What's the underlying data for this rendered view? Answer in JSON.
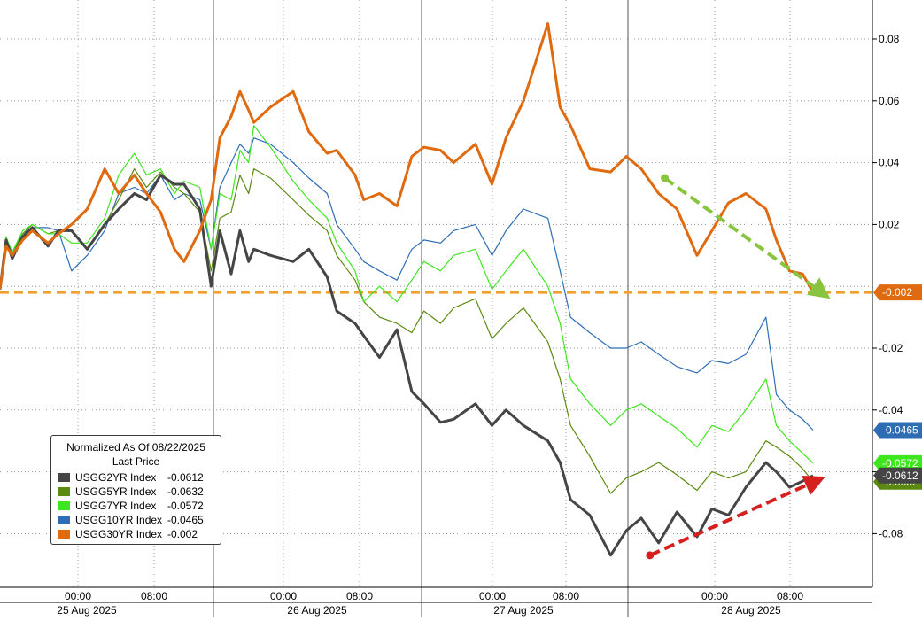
{
  "chart_data": {
    "type": "line",
    "x_ticks": [
      "00:00",
      "08:00",
      "00:00",
      "08:00",
      "00:00",
      "08:00",
      "00:00",
      "08:00"
    ],
    "date_labels": [
      "25 Aug 2025",
      "26 Aug 2025",
      "27 Aug 2025",
      "28 Aug 2025"
    ],
    "y_ticks": [
      "0.08",
      "0.06",
      "0.04",
      "0.02",
      "-0.02",
      "-0.04",
      "-0.06",
      "-0.08"
    ],
    "ylim": [
      -0.095,
      0.095
    ],
    "grid": true,
    "y_axis_side": "right",
    "legend": {
      "placement": "bottom-left",
      "title": "Normalized As Of 08/22/2025",
      "subtitle": "Last Price"
    },
    "series": [
      {
        "name": "USGG2YR Index",
        "last": "-0.0612",
        "color": "#454545",
        "values": [
          [
            0.0,
            -0.001
          ],
          [
            0.7,
            0.015
          ],
          [
            1.4,
            0.009
          ],
          [
            2.6,
            0.016
          ],
          [
            3.7,
            0.019
          ],
          [
            5.5,
            0.013
          ],
          [
            6.7,
            0.018
          ],
          [
            8.2,
            0.018
          ],
          [
            10.0,
            0.012
          ],
          [
            12.0,
            0.02
          ],
          [
            13.6,
            0.025
          ],
          [
            15.4,
            0.03
          ],
          [
            16.8,
            0.028
          ],
          [
            18.4,
            0.036
          ],
          [
            20.0,
            0.033
          ],
          [
            21.1,
            0.033
          ],
          [
            22.9,
            0.025
          ],
          [
            24.2,
            0.0
          ],
          [
            25.2,
            0.018
          ],
          [
            26.5,
            0.004
          ],
          [
            27.5,
            0.018
          ],
          [
            28.5,
            0.008
          ],
          [
            29.1,
            0.012
          ],
          [
            31.0,
            0.01
          ],
          [
            33.6,
            0.008
          ],
          [
            35.4,
            0.012
          ],
          [
            37.5,
            0.003
          ],
          [
            38.6,
            -0.008
          ],
          [
            40.7,
            -0.012
          ],
          [
            41.7,
            -0.016
          ],
          [
            43.5,
            -0.023
          ],
          [
            45.5,
            -0.014
          ],
          [
            47.2,
            -0.034
          ],
          [
            48.6,
            -0.038
          ],
          [
            50.5,
            -0.044
          ],
          [
            52.0,
            -0.043
          ],
          [
            54.5,
            -0.038
          ],
          [
            56.4,
            -0.045
          ],
          [
            58.0,
            -0.04
          ],
          [
            60.0,
            -0.045
          ],
          [
            62.8,
            -0.05
          ],
          [
            64.2,
            -0.057
          ],
          [
            65.4,
            -0.069
          ],
          [
            67.6,
            -0.074
          ],
          [
            70.0,
            -0.087
          ],
          [
            71.8,
            -0.079
          ],
          [
            73.5,
            -0.075
          ],
          [
            75.5,
            -0.083
          ],
          [
            77.6,
            -0.073
          ],
          [
            79.9,
            -0.081
          ],
          [
            81.6,
            -0.072
          ],
          [
            83.5,
            -0.074
          ],
          [
            85.5,
            -0.065
          ],
          [
            87.8,
            -0.057
          ],
          [
            89.0,
            -0.06
          ],
          [
            90.5,
            -0.065
          ],
          [
            92.0,
            -0.063
          ],
          [
            93.2,
            -0.0612
          ]
        ]
      },
      {
        "name": "USGG5YR Index",
        "last": "-0.0632",
        "color": "#5a8a10",
        "values": [
          [
            0.0,
            -0.001
          ],
          [
            0.7,
            0.016
          ],
          [
            1.4,
            0.01
          ],
          [
            2.6,
            0.017
          ],
          [
            3.7,
            0.02
          ],
          [
            5.5,
            0.017
          ],
          [
            6.7,
            0.018
          ],
          [
            8.2,
            0.018
          ],
          [
            10.0,
            0.012
          ],
          [
            12.0,
            0.02
          ],
          [
            13.6,
            0.028
          ],
          [
            15.4,
            0.038
          ],
          [
            16.8,
            0.032
          ],
          [
            18.4,
            0.037
          ],
          [
            20.0,
            0.032
          ],
          [
            21.1,
            0.03
          ],
          [
            22.9,
            0.024
          ],
          [
            24.2,
            0.005
          ],
          [
            25.2,
            0.022
          ],
          [
            26.5,
            0.024
          ],
          [
            27.5,
            0.036
          ],
          [
            28.5,
            0.03
          ],
          [
            29.1,
            0.038
          ],
          [
            31.0,
            0.035
          ],
          [
            33.6,
            0.028
          ],
          [
            35.4,
            0.023
          ],
          [
            37.5,
            0.018
          ],
          [
            38.6,
            0.01
          ],
          [
            40.7,
            0.002
          ],
          [
            41.7,
            -0.005
          ],
          [
            43.5,
            -0.01
          ],
          [
            45.5,
            -0.012
          ],
          [
            47.2,
            -0.015
          ],
          [
            48.6,
            -0.008
          ],
          [
            50.5,
            -0.012
          ],
          [
            52.0,
            -0.007
          ],
          [
            54.5,
            -0.004
          ],
          [
            56.4,
            -0.017
          ],
          [
            58.0,
            -0.012
          ],
          [
            60.0,
            -0.007
          ],
          [
            62.8,
            -0.018
          ],
          [
            64.2,
            -0.03
          ],
          [
            65.4,
            -0.045
          ],
          [
            67.6,
            -0.055
          ],
          [
            70.0,
            -0.067
          ],
          [
            71.8,
            -0.062
          ],
          [
            73.5,
            -0.06
          ],
          [
            75.5,
            -0.057
          ],
          [
            77.6,
            -0.061
          ],
          [
            79.9,
            -0.066
          ],
          [
            81.6,
            -0.06
          ],
          [
            83.5,
            -0.062
          ],
          [
            85.5,
            -0.06
          ],
          [
            87.8,
            -0.05
          ],
          [
            89.0,
            -0.052
          ],
          [
            90.5,
            -0.055
          ],
          [
            92.0,
            -0.059
          ],
          [
            93.2,
            -0.0632
          ]
        ]
      },
      {
        "name": "USGG7YR Index",
        "last": "-0.0572",
        "color": "#3ee61e",
        "values": [
          [
            0.0,
            -0.001
          ],
          [
            0.7,
            0.016
          ],
          [
            1.4,
            0.011
          ],
          [
            2.6,
            0.018
          ],
          [
            3.7,
            0.02
          ],
          [
            5.5,
            0.017
          ],
          [
            6.7,
            0.017
          ],
          [
            8.2,
            0.014
          ],
          [
            10.0,
            0.014
          ],
          [
            12.0,
            0.022
          ],
          [
            13.6,
            0.036
          ],
          [
            15.4,
            0.043
          ],
          [
            16.8,
            0.036
          ],
          [
            18.4,
            0.038
          ],
          [
            20.0,
            0.03
          ],
          [
            21.1,
            0.034
          ],
          [
            22.9,
            0.032
          ],
          [
            24.2,
            0.012
          ],
          [
            25.2,
            0.03
          ],
          [
            26.5,
            0.028
          ],
          [
            27.5,
            0.044
          ],
          [
            28.5,
            0.04
          ],
          [
            29.1,
            0.052
          ],
          [
            31.0,
            0.045
          ],
          [
            33.6,
            0.034
          ],
          [
            35.4,
            0.028
          ],
          [
            37.5,
            0.022
          ],
          [
            38.6,
            0.014
          ],
          [
            40.7,
            0.005
          ],
          [
            41.7,
            -0.005
          ],
          [
            43.5,
            0.0
          ],
          [
            45.5,
            -0.005
          ],
          [
            47.2,
            0.002
          ],
          [
            48.6,
            0.008
          ],
          [
            50.5,
            0.005
          ],
          [
            52.0,
            0.01
          ],
          [
            54.5,
            0.012
          ],
          [
            56.4,
            -0.001
          ],
          [
            58.0,
            0.005
          ],
          [
            60.0,
            0.012
          ],
          [
            62.8,
            0.0
          ],
          [
            64.2,
            -0.012
          ],
          [
            65.4,
            -0.03
          ],
          [
            67.6,
            -0.038
          ],
          [
            70.0,
            -0.045
          ],
          [
            71.8,
            -0.04
          ],
          [
            73.5,
            -0.038
          ],
          [
            75.5,
            -0.042
          ],
          [
            77.6,
            -0.046
          ],
          [
            79.9,
            -0.052
          ],
          [
            81.6,
            -0.045
          ],
          [
            83.5,
            -0.047
          ],
          [
            85.5,
            -0.04
          ],
          [
            87.8,
            -0.03
          ],
          [
            89.0,
            -0.045
          ],
          [
            90.5,
            -0.05
          ],
          [
            92.0,
            -0.054
          ],
          [
            93.2,
            -0.0572
          ]
        ]
      },
      {
        "name": "USGG10YR Index",
        "last": "-0.0465",
        "color": "#2e6db4",
        "values": [
          [
            0.0,
            -0.001
          ],
          [
            0.7,
            0.015
          ],
          [
            1.4,
            0.011
          ],
          [
            2.6,
            0.017
          ],
          [
            3.7,
            0.019
          ],
          [
            5.5,
            0.019
          ],
          [
            6.7,
            0.018
          ],
          [
            8.2,
            0.005
          ],
          [
            10.0,
            0.01
          ],
          [
            12.0,
            0.018
          ],
          [
            13.6,
            0.03
          ],
          [
            15.4,
            0.032
          ],
          [
            16.8,
            0.03
          ],
          [
            18.4,
            0.036
          ],
          [
            20.0,
            0.028
          ],
          [
            21.1,
            0.03
          ],
          [
            22.9,
            0.028
          ],
          [
            24.2,
            0.012
          ],
          [
            25.2,
            0.032
          ],
          [
            26.5,
            0.04
          ],
          [
            27.5,
            0.046
          ],
          [
            28.5,
            0.043
          ],
          [
            29.1,
            0.048
          ],
          [
            31.0,
            0.046
          ],
          [
            33.6,
            0.04
          ],
          [
            35.4,
            0.035
          ],
          [
            37.5,
            0.03
          ],
          [
            38.6,
            0.02
          ],
          [
            40.7,
            0.012
          ],
          [
            41.7,
            0.008
          ],
          [
            43.5,
            0.005
          ],
          [
            45.5,
            0.002
          ],
          [
            47.2,
            0.012
          ],
          [
            48.6,
            0.015
          ],
          [
            50.5,
            0.014
          ],
          [
            52.0,
            0.018
          ],
          [
            54.5,
            0.02
          ],
          [
            56.4,
            0.01
          ],
          [
            58.0,
            0.018
          ],
          [
            60.0,
            0.025
          ],
          [
            62.8,
            0.022
          ],
          [
            64.2,
            0.005
          ],
          [
            65.4,
            -0.01
          ],
          [
            67.6,
            -0.015
          ],
          [
            70.0,
            -0.02
          ],
          [
            71.8,
            -0.02
          ],
          [
            73.5,
            -0.018
          ],
          [
            75.5,
            -0.022
          ],
          [
            77.6,
            -0.026
          ],
          [
            79.9,
            -0.028
          ],
          [
            81.6,
            -0.024
          ],
          [
            83.5,
            -0.025
          ],
          [
            85.5,
            -0.022
          ],
          [
            87.8,
            -0.01
          ],
          [
            89.0,
            -0.035
          ],
          [
            90.5,
            -0.04
          ],
          [
            92.0,
            -0.043
          ],
          [
            93.2,
            -0.0465
          ]
        ]
      },
      {
        "name": "USGG30YR Index",
        "last": "-0.002",
        "color": "#e06a0f",
        "values": [
          [
            0.0,
            -0.001
          ],
          [
            0.7,
            0.013
          ],
          [
            1.4,
            0.01
          ],
          [
            2.6,
            0.015
          ],
          [
            3.7,
            0.018
          ],
          [
            5.5,
            0.014
          ],
          [
            6.7,
            0.017
          ],
          [
            8.2,
            0.02
          ],
          [
            10.0,
            0.025
          ],
          [
            12.0,
            0.038
          ],
          [
            13.6,
            0.03
          ],
          [
            15.4,
            0.036
          ],
          [
            16.8,
            0.03
          ],
          [
            18.4,
            0.024
          ],
          [
            20.0,
            0.012
          ],
          [
            21.1,
            0.008
          ],
          [
            22.9,
            0.018
          ],
          [
            24.2,
            0.028
          ],
          [
            25.2,
            0.048
          ],
          [
            26.5,
            0.055
          ],
          [
            27.5,
            0.063
          ],
          [
            28.5,
            0.057
          ],
          [
            29.1,
            0.053
          ],
          [
            31.0,
            0.058
          ],
          [
            33.6,
            0.063
          ],
          [
            35.4,
            0.05
          ],
          [
            37.5,
            0.043
          ],
          [
            38.6,
            0.044
          ],
          [
            40.7,
            0.036
          ],
          [
            41.7,
            0.028
          ],
          [
            43.5,
            0.03
          ],
          [
            45.5,
            0.026
          ],
          [
            47.2,
            0.042
          ],
          [
            48.6,
            0.045
          ],
          [
            50.5,
            0.044
          ],
          [
            52.0,
            0.04
          ],
          [
            54.5,
            0.046
          ],
          [
            56.4,
            0.033
          ],
          [
            58.0,
            0.048
          ],
          [
            60.0,
            0.06
          ],
          [
            62.8,
            0.085
          ],
          [
            64.2,
            0.058
          ],
          [
            65.4,
            0.052
          ],
          [
            67.6,
            0.038
          ],
          [
            70.0,
            0.037
          ],
          [
            71.8,
            0.042
          ],
          [
            73.5,
            0.038
          ],
          [
            75.5,
            0.03
          ],
          [
            77.6,
            0.025
          ],
          [
            79.9,
            0.01
          ],
          [
            81.6,
            0.018
          ],
          [
            83.5,
            0.027
          ],
          [
            85.5,
            0.03
          ],
          [
            87.8,
            0.025
          ],
          [
            89.0,
            0.015
          ],
          [
            90.5,
            0.005
          ],
          [
            92.0,
            0.004
          ],
          [
            93.2,
            -0.002
          ]
        ]
      }
    ],
    "reference_line": {
      "y": -0.002,
      "color": "#f0a030",
      "label": "-0.002"
    },
    "annotations": [
      {
        "kind": "arrow",
        "color": "#88c43f",
        "from": [
          76.2,
          0.035
        ],
        "to": [
          94.2,
          -0.002
        ]
      },
      {
        "kind": "arrow",
        "color": "#d62020",
        "from": [
          74.5,
          -0.087
        ],
        "to": [
          93.5,
          -0.063
        ]
      }
    ],
    "value_tags": [
      {
        "text": "-0.0465",
        "y": -0.0465,
        "color": "#2e6db4"
      },
      {
        "text": "-0.0572",
        "y": -0.0572,
        "color": "#3ee61e"
      },
      {
        "text": "-0.0632",
        "y": -0.0632,
        "color": "#5a8a10"
      },
      {
        "text": "-0.0612",
        "y": -0.0612,
        "color": "#454545"
      }
    ]
  }
}
